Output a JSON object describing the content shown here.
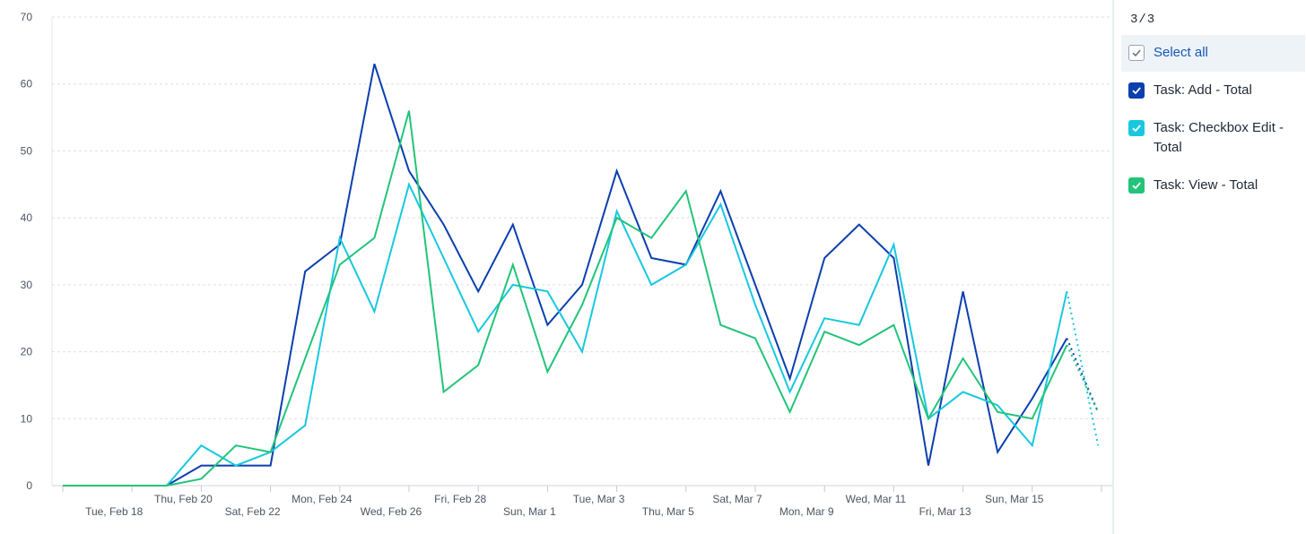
{
  "chart_data": {
    "type": "line",
    "ylim": [
      0,
      70
    ],
    "yticks": [
      0,
      10,
      20,
      30,
      40,
      50,
      60,
      70
    ],
    "xlabels": [
      {
        "label": "Tue, Feb 18",
        "row": 2,
        "index": 2
      },
      {
        "label": "Thu, Feb 20",
        "row": 1,
        "index": 4
      },
      {
        "label": "Sat, Feb 22",
        "row": 2,
        "index": 6
      },
      {
        "label": "Mon, Feb 24",
        "row": 1,
        "index": 8
      },
      {
        "label": "Wed, Feb 26",
        "row": 2,
        "index": 10
      },
      {
        "label": "Fri, Feb 28",
        "row": 1,
        "index": 12
      },
      {
        "label": "Sun, Mar 1",
        "row": 2,
        "index": 14
      },
      {
        "label": "Tue, Mar 3",
        "row": 1,
        "index": 16
      },
      {
        "label": "Thu, Mar 5",
        "row": 2,
        "index": 18
      },
      {
        "label": "Sat, Mar 7",
        "row": 1,
        "index": 20
      },
      {
        "label": "Mon, Mar 9",
        "row": 2,
        "index": 22
      },
      {
        "label": "Wed, Mar 11",
        "row": 1,
        "index": 24
      },
      {
        "label": "Fri, Mar 13",
        "row": 2,
        "index": 26
      },
      {
        "label": "Sun, Mar 15",
        "row": 1,
        "index": 28
      }
    ],
    "grid": true,
    "series": [
      {
        "name": "Task: Add - Total",
        "color": "#0b3fae",
        "values": [
          0,
          0,
          0,
          0,
          3,
          3,
          3,
          32,
          36,
          63,
          47,
          39,
          29,
          39,
          24,
          30,
          47,
          34,
          33,
          44,
          30,
          16,
          34,
          39,
          34,
          3,
          29,
          5,
          13,
          22
        ],
        "projected_end": 11
      },
      {
        "name": "Task: Checkbox Edit - Total",
        "color": "#18c8e0",
        "values": [
          0,
          0,
          0,
          0,
          6,
          3,
          5,
          9,
          37,
          26,
          45,
          34,
          23,
          30,
          29,
          20,
          41,
          30,
          33,
          42,
          27,
          14,
          25,
          24,
          36,
          10,
          14,
          12,
          6,
          29
        ],
        "projected_end": 6
      },
      {
        "name": "Task: View - Total",
        "color": "#22c47a",
        "values": [
          0,
          0,
          0,
          0,
          1,
          6,
          5,
          19,
          33,
          37,
          56,
          14,
          18,
          33,
          17,
          27,
          40,
          37,
          44,
          24,
          22,
          11,
          23,
          21,
          24,
          10,
          19,
          11,
          10,
          21
        ],
        "projected_end": 11
      }
    ]
  },
  "legend": {
    "count": "3/3",
    "select_all": "Select all",
    "items": [
      {
        "label_line1": "Task: Add - Total",
        "label_line2": ""
      },
      {
        "label_line1": "Task: Checkbox Edit -",
        "label_line2": "Total"
      },
      {
        "label_line1": "Task: View - Total",
        "label_line2": ""
      }
    ]
  },
  "colors": {
    "add": "#0b3fae",
    "checkbox_edit": "#18c8e0",
    "view": "#22c47a"
  }
}
